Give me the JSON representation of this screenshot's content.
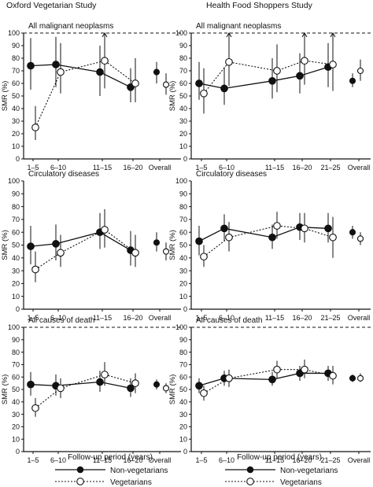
{
  "study_titles": [
    "Oxford Vegetarian Study",
    "Health Food Shoppers Study"
  ],
  "x_axis_label": "Follow-up period (years)",
  "legend": {
    "non_vegetarians": "Non-vegetarians",
    "vegetarians": "Vegetarians"
  },
  "chart_data": [
    {
      "type": "line",
      "title": "All malignant neoplasms",
      "study": "Oxford Vegetarian Study",
      "categories": [
        "1–5",
        "6–10",
        "11–15",
        "16–20"
      ],
      "overall_label": "Overall",
      "ylabel": "SMR (%)",
      "yticks": [
        0,
        10,
        20,
        30,
        40,
        50,
        60,
        70,
        80,
        90,
        100
      ],
      "ylim": [
        0,
        100
      ],
      "reference_line": 100,
      "series": [
        {
          "name": "Non-vegetarians",
          "marker": "filled",
          "values": [
            74,
            75,
            69,
            57
          ],
          "lower": [
            55,
            57,
            50,
            45
          ],
          "upper": [
            96,
            97,
            90,
            72
          ],
          "overall": 69,
          "overall_lower": 60,
          "overall_upper": 77
        },
        {
          "name": "Vegetarians",
          "marker": "open",
          "values": [
            25,
            69,
            78,
            60
          ],
          "lower": [
            15,
            52,
            56,
            45
          ],
          "upper": [
            42,
            92,
            100,
            80
          ],
          "overall": 59,
          "overall_lower": 51,
          "overall_upper": 68
        }
      ]
    },
    {
      "type": "line",
      "title": "All malignant neoplasms",
      "study": "Health Food Shoppers Study",
      "categories": [
        "1–5",
        "6–10",
        "11–15",
        "16–20",
        "21–25"
      ],
      "overall_label": "Overall",
      "ylabel": "SMR (%)",
      "yticks": [
        0,
        10,
        20,
        30,
        40,
        50,
        60,
        70,
        80,
        90,
        100
      ],
      "ylim": [
        0,
        100
      ],
      "reference_line": 100,
      "series": [
        {
          "name": "Non-vegetarians",
          "marker": "filled",
          "values": [
            60,
            56,
            62,
            66,
            73
          ],
          "lower": [
            47,
            43,
            48,
            52,
            57
          ],
          "upper": [
            77,
            73,
            80,
            84,
            92
          ],
          "overall": 62,
          "overall_lower": 57,
          "overall_upper": 68
        },
        {
          "name": "Vegetarians",
          "marker": "open",
          "values": [
            52,
            77,
            70,
            78,
            75
          ],
          "lower": [
            36,
            58,
            53,
            59,
            54
          ],
          "upper": [
            72,
            100,
            91,
            100,
            100
          ],
          "overall": 70,
          "overall_lower": 62,
          "overall_upper": 79
        }
      ]
    },
    {
      "type": "line",
      "title": "Circulatory diseases",
      "study": "Oxford Vegetarian Study",
      "categories": [
        "1–5",
        "6–10",
        "11–15",
        "16–20"
      ],
      "overall_label": "Overall",
      "ylabel": "SMR (%)",
      "yticks": [
        0,
        10,
        20,
        30,
        40,
        50,
        60,
        70,
        80,
        90,
        100
      ],
      "ylim": [
        0,
        100
      ],
      "series": [
        {
          "name": "Non-vegetarians",
          "marker": "filled",
          "values": [
            49,
            51,
            60,
            46
          ],
          "lower": [
            35,
            38,
            47,
            34
          ],
          "upper": [
            65,
            66,
            75,
            61
          ],
          "overall": 52,
          "overall_lower": 45,
          "overall_upper": 60
        },
        {
          "name": "Vegetarians",
          "marker": "open",
          "values": [
            31,
            44,
            62,
            44
          ],
          "lower": [
            21,
            33,
            48,
            33
          ],
          "upper": [
            45,
            58,
            78,
            58
          ],
          "overall": 45,
          "overall_lower": 38,
          "overall_upper": 52
        }
      ]
    },
    {
      "type": "line",
      "title": "Circulatory diseases",
      "study": "Health Food Shoppers Study",
      "categories": [
        "1–5",
        "6–10",
        "11–15",
        "16–20",
        "21–25"
      ],
      "overall_label": "Overall",
      "ylabel": "SMR (%)",
      "yticks": [
        0,
        10,
        20,
        30,
        40,
        50,
        60,
        70,
        80,
        90,
        100
      ],
      "ylim": [
        0,
        100
      ],
      "series": [
        {
          "name": "Non-vegetarians",
          "marker": "filled",
          "values": [
            53,
            63,
            56,
            64,
            63
          ],
          "lower": [
            42,
            53,
            47,
            54,
            52
          ],
          "upper": [
            65,
            74,
            66,
            75,
            75
          ],
          "overall": 60,
          "overall_lower": 55,
          "overall_upper": 65
        },
        {
          "name": "Vegetarians",
          "marker": "open",
          "values": [
            41,
            56,
            65,
            63,
            56
          ],
          "lower": [
            33,
            45,
            55,
            52,
            40
          ],
          "upper": [
            50,
            68,
            76,
            75,
            72
          ],
          "overall": 55,
          "overall_lower": 50,
          "overall_upper": 60
        }
      ]
    },
    {
      "type": "line",
      "title": "All causes of death",
      "study": "Oxford Vegetarian Study",
      "categories": [
        "1–5",
        "6–10",
        "11–15",
        "16–20"
      ],
      "overall_label": "Overall",
      "ylabel": "SMR (%)",
      "yticks": [
        0,
        10,
        20,
        30,
        40,
        50,
        60,
        70,
        80,
        90,
        100
      ],
      "ylim": [
        0,
        100
      ],
      "reference_line": 100,
      "series": [
        {
          "name": "Non-vegetarians",
          "marker": "filled",
          "values": [
            54,
            53,
            56,
            51
          ],
          "lower": [
            45,
            45,
            48,
            44
          ],
          "upper": [
            64,
            62,
            65,
            59
          ],
          "overall": 54,
          "overall_lower": 50,
          "overall_upper": 58
        },
        {
          "name": "Vegetarians",
          "marker": "open",
          "values": [
            35,
            51,
            62,
            55
          ],
          "lower": [
            28,
            43,
            53,
            47
          ],
          "upper": [
            43,
            59,
            72,
            63
          ],
          "overall": 51,
          "overall_lower": 47,
          "overall_upper": 55
        }
      ]
    },
    {
      "type": "line",
      "title": "All causes of death",
      "study": "Health Food Shoppers Study",
      "categories": [
        "1–5",
        "6–10",
        "11–15",
        "16–20",
        "21–25"
      ],
      "overall_label": "Overall",
      "ylabel": "SMR (%)",
      "yticks": [
        0,
        10,
        20,
        30,
        40,
        50,
        60,
        70,
        80,
        90,
        100
      ],
      "ylim": [
        0,
        100
      ],
      "reference_line": 100,
      "series": [
        {
          "name": "Non-vegetarians",
          "marker": "filled",
          "values": [
            53,
            59,
            58,
            63,
            63
          ],
          "lower": [
            47,
            53,
            53,
            57,
            57
          ],
          "upper": [
            59,
            65,
            64,
            69,
            69
          ],
          "overall": 59,
          "overall_lower": 56,
          "overall_upper": 62
        },
        {
          "name": "Vegetarians",
          "marker": "open",
          "values": [
            47,
            59,
            66,
            66,
            61
          ],
          "lower": [
            41,
            52,
            59,
            59,
            54
          ],
          "upper": [
            53,
            66,
            73,
            74,
            69
          ],
          "overall": 59,
          "overall_lower": 56,
          "overall_upper": 63
        }
      ]
    }
  ]
}
